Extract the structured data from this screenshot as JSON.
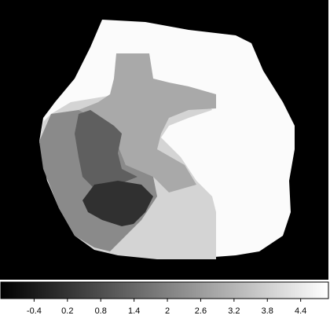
{
  "chart_data": {
    "type": "heatmap",
    "colormap": "gray",
    "background": "black",
    "values": [
      4.8,
      3.9,
      2.9,
      2.2,
      1.2,
      0.1
    ],
    "clim": [
      -1,
      4.9
    ],
    "cticks": [
      -0.4,
      0.2,
      0.8,
      1.4,
      2,
      2.6,
      3.2,
      3.8,
      4.4
    ]
  }
}
